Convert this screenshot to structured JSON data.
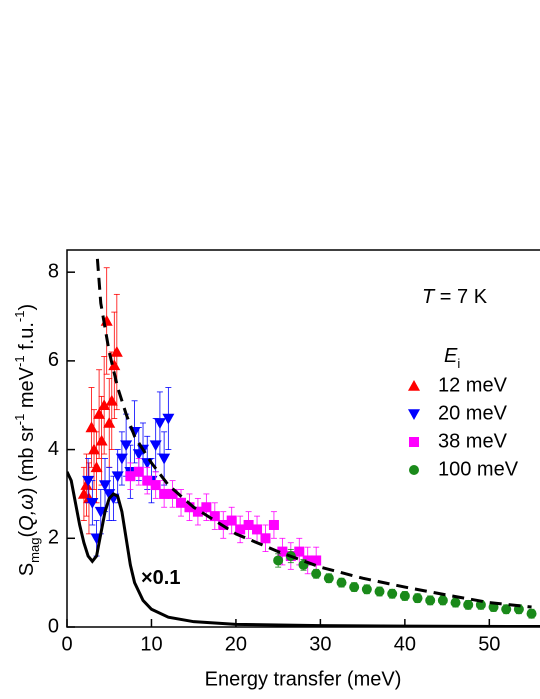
{
  "chart_data": {
    "type": "scatter",
    "xlabel": "Energy transfer (meV)",
    "ylabel_parts": [
      {
        "text": "S"
      },
      {
        "text": "mag",
        "style": "sub"
      },
      {
        "text": "("
      },
      {
        "text": "Q,ω",
        "style": "italic"
      },
      {
        "text": ") (mb sr"
      },
      {
        "text": "-1",
        "style": "sup"
      },
      {
        "text": " meV"
      },
      {
        "text": "-1",
        "style": "sup"
      },
      {
        "text": " f.u."
      },
      {
        "text": "-1",
        "style": "sup"
      },
      {
        "text": ")"
      }
    ],
    "xlim": [
      0,
      56
    ],
    "ylim": [
      0,
      8.5
    ],
    "xticks": [
      0,
      10,
      20,
      30,
      40,
      50
    ],
    "yticks": [
      0,
      2,
      4,
      6,
      8
    ],
    "legend_title_parts": [
      {
        "text": "E",
        "style": "italic"
      },
      {
        "text": "i",
        "style": "sub"
      }
    ],
    "annotations": [
      {
        "parts": [
          {
            "text": "T",
            "style": "italic"
          },
          {
            "text": " = 7 K"
          }
        ]
      },
      {
        "parts": [
          {
            "text": "×0.1",
            "style": "bold"
          }
        ]
      }
    ],
    "series": [
      {
        "name": "12 meV",
        "color": "#ff0000",
        "marker": "triangle-up",
        "x": [
          2.0,
          2.3,
          2.6,
          2.9,
          3.2,
          3.5,
          3.8,
          4.1,
          4.4,
          4.7,
          5.0,
          5.3,
          5.6,
          5.9
        ],
        "values": [
          3.0,
          3.2,
          2.9,
          4.5,
          4.0,
          3.6,
          4.8,
          4.2,
          5.0,
          6.9,
          4.6,
          5.1,
          5.9,
          6.2
        ],
        "errors": [
          0.6,
          0.7,
          0.8,
          0.9,
          0.9,
          0.8,
          1.0,
          1.0,
          1.1,
          1.2,
          1.0,
          1.1,
          1.2,
          1.3
        ]
      },
      {
        "name": "20 meV",
        "color": "#0000ff",
        "marker": "triangle-down",
        "x": [
          2.5,
          3,
          3.5,
          4,
          4.5,
          5,
          5.5,
          6,
          6.5,
          7,
          7.5,
          8,
          8.5,
          9,
          9.5,
          10,
          10.5,
          11,
          11.5,
          12
        ],
        "values": [
          3.3,
          2.8,
          2.0,
          2.6,
          3.2,
          3.0,
          2.9,
          3.4,
          3.8,
          4.1,
          3.5,
          4.4,
          3.9,
          4.0,
          3.7,
          3.3,
          4.1,
          4.6,
          3.8,
          4.7
        ],
        "errors": [
          0.5,
          0.5,
          0.4,
          0.5,
          0.6,
          0.6,
          0.5,
          0.6,
          0.6,
          0.7,
          0.6,
          0.7,
          0.6,
          0.6,
          0.6,
          0.5,
          0.6,
          0.7,
          0.6,
          0.7
        ]
      },
      {
        "name": "38 meV",
        "color": "#ff00ff",
        "marker": "square",
        "x": [
          7.5,
          8.5,
          9.5,
          10.5,
          11.5,
          12.5,
          13.5,
          14.5,
          15.5,
          16.5,
          17.5,
          18.5,
          19.5,
          20.5,
          21.5,
          22.5,
          23.5,
          24.5,
          25.5,
          26.5,
          27.5,
          28.5,
          29.5
        ],
        "values": [
          3.4,
          3.5,
          3.3,
          3.2,
          3.0,
          3.0,
          2.8,
          2.7,
          2.6,
          2.7,
          2.5,
          2.3,
          2.4,
          2.2,
          2.3,
          2.2,
          2.0,
          2.3,
          1.7,
          1.6,
          1.7,
          1.5,
          1.5
        ],
        "errors": [
          0.3,
          0.3,
          0.3,
          0.3,
          0.3,
          0.3,
          0.3,
          0.3,
          0.3,
          0.3,
          0.3,
          0.3,
          0.3,
          0.3,
          0.3,
          0.3,
          0.3,
          0.3,
          0.3,
          0.3,
          0.3,
          0.3,
          0.3
        ]
      },
      {
        "name": "100 meV",
        "color": "#1a8a1a",
        "marker": "circle",
        "x": [
          25,
          26.5,
          28,
          29.5,
          31,
          32.5,
          34,
          35.5,
          37,
          38.5,
          40,
          41.5,
          43,
          44.5,
          46,
          47.5,
          49,
          50.5,
          52,
          53.5,
          55
        ],
        "values": [
          1.5,
          1.6,
          1.4,
          1.2,
          1.1,
          1.0,
          0.9,
          0.85,
          0.8,
          0.75,
          0.7,
          0.65,
          0.6,
          0.6,
          0.55,
          0.5,
          0.5,
          0.45,
          0.4,
          0.4,
          0.3
        ],
        "errors": [
          0.15,
          0.15,
          0.12,
          0.1,
          0.1,
          0.1,
          0.1,
          0.1,
          0.1,
          0.1,
          0.1,
          0.1,
          0.1,
          0.1,
          0.1,
          0.1,
          0.1,
          0.1,
          0.1,
          0.1,
          0.1
        ]
      },
      {
        "type": "line",
        "color": "#000000",
        "dash": true,
        "x": [
          3.6,
          4,
          5,
          6,
          7,
          8,
          10,
          12,
          15,
          20,
          25,
          30,
          35,
          40,
          45,
          50,
          55
        ],
        "values": [
          8.3,
          7.3,
          6.2,
          5.4,
          4.8,
          4.3,
          3.7,
          3.2,
          2.7,
          2.1,
          1.7,
          1.35,
          1.1,
          0.9,
          0.72,
          0.55,
          0.45
        ]
      },
      {
        "type": "line",
        "color": "#000000",
        "dash": false,
        "x": [
          0,
          0.5,
          1,
          1.5,
          2,
          2.5,
          3,
          3.5,
          4,
          4.5,
          5,
          5.5,
          6,
          6.5,
          7,
          7.5,
          8,
          9,
          10,
          12,
          15,
          20,
          30,
          40,
          56
        ],
        "values": [
          3.5,
          3.3,
          2.8,
          2.3,
          1.9,
          1.6,
          1.48,
          1.6,
          2.1,
          2.6,
          2.9,
          3.0,
          2.95,
          2.6,
          2.0,
          1.4,
          1.0,
          0.6,
          0.4,
          0.22,
          0.12,
          0.06,
          0.03,
          0.02,
          0.01
        ]
      }
    ]
  }
}
